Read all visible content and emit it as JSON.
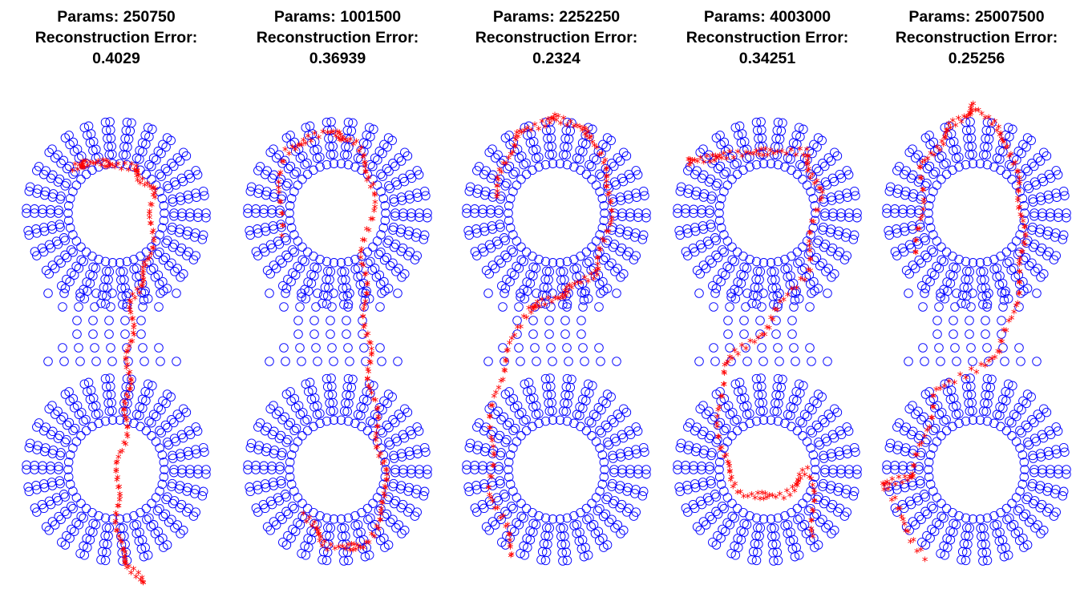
{
  "figure": {
    "params_label": "Params:",
    "error_label": "Reconstruction Error:",
    "colors": {
      "target": "#0000ff",
      "reconstruction": "#ff0000"
    }
  },
  "chart_data": [
    {
      "type": "scatter",
      "title": "Params: 250750 Reconstruction Error: 0.4029",
      "params": "250750",
      "error": "0.4029",
      "grid": false,
      "xlim": [
        0,
        1
      ],
      "ylim": [
        0,
        1
      ],
      "path": [
        [
          0.29,
          0.82
        ],
        [
          0.4,
          0.83
        ],
        [
          0.58,
          0.82
        ],
        [
          0.68,
          0.77
        ],
        [
          0.66,
          0.64
        ],
        [
          0.58,
          0.56
        ],
        [
          0.56,
          0.44
        ],
        [
          0.55,
          0.33
        ],
        [
          0.5,
          0.2
        ],
        [
          0.52,
          0.07
        ],
        [
          0.62,
          0.01
        ]
      ]
    },
    {
      "type": "scatter",
      "title": "Params: 1001500 Reconstruction Error: 0.36939",
      "params": "1001500",
      "error": "0.36939",
      "grid": false,
      "xlim": [
        0,
        1
      ],
      "ylim": [
        0,
        1
      ],
      "path": [
        [
          0.22,
          0.69
        ],
        [
          0.24,
          0.85
        ],
        [
          0.45,
          0.89
        ],
        [
          0.58,
          0.87
        ],
        [
          0.68,
          0.78
        ],
        [
          0.62,
          0.64
        ],
        [
          0.64,
          0.51
        ],
        [
          0.66,
          0.4
        ],
        [
          0.7,
          0.28
        ],
        [
          0.74,
          0.18
        ],
        [
          0.64,
          0.08
        ],
        [
          0.46,
          0.08
        ],
        [
          0.34,
          0.14
        ]
      ]
    },
    {
      "type": "scatter",
      "title": "Params: 2252250 Reconstruction Error: 0.2324",
      "params": "2252250",
      "error": "0.2324",
      "grid": false,
      "xlim": [
        0,
        1
      ],
      "ylim": [
        0,
        1
      ],
      "path": [
        [
          0.2,
          0.76
        ],
        [
          0.3,
          0.88
        ],
        [
          0.5,
          0.92
        ],
        [
          0.68,
          0.88
        ],
        [
          0.77,
          0.76
        ],
        [
          0.7,
          0.62
        ],
        [
          0.52,
          0.57
        ],
        [
          0.35,
          0.54
        ],
        [
          0.2,
          0.38
        ],
        [
          0.18,
          0.2
        ],
        [
          0.3,
          0.06
        ]
      ]
    },
    {
      "type": "scatter",
      "title": "Params: 4003000 Reconstruction Error: 0.34251",
      "params": "4003000",
      "error": "0.34251",
      "grid": false,
      "xlim": [
        0,
        1
      ],
      "ylim": [
        0,
        1
      ],
      "path": [
        [
          0.12,
          0.83
        ],
        [
          0.25,
          0.84
        ],
        [
          0.45,
          0.85
        ],
        [
          0.68,
          0.85
        ],
        [
          0.75,
          0.77
        ],
        [
          0.69,
          0.62
        ],
        [
          0.48,
          0.5
        ],
        [
          0.28,
          0.43
        ],
        [
          0.27,
          0.27
        ],
        [
          0.38,
          0.18
        ],
        [
          0.58,
          0.18
        ],
        [
          0.7,
          0.23
        ],
        [
          0.73,
          0.1
        ]
      ]
    },
    {
      "type": "scatter",
      "title": "Params: 25007500 Reconstruction Error: 0.25256",
      "params": "25007500",
      "error": "0.25256",
      "grid": false,
      "xlim": [
        0,
        1
      ],
      "ylim": [
        0,
        1
      ],
      "path": [
        [
          0.22,
          0.65
        ],
        [
          0.24,
          0.82
        ],
        [
          0.38,
          0.9
        ],
        [
          0.5,
          0.94
        ],
        [
          0.66,
          0.86
        ],
        [
          0.72,
          0.74
        ],
        [
          0.72,
          0.62
        ],
        [
          0.62,
          0.46
        ],
        [
          0.3,
          0.38
        ],
        [
          0.2,
          0.22
        ],
        [
          0.05,
          0.2
        ],
        [
          0.25,
          0.06
        ]
      ]
    }
  ]
}
